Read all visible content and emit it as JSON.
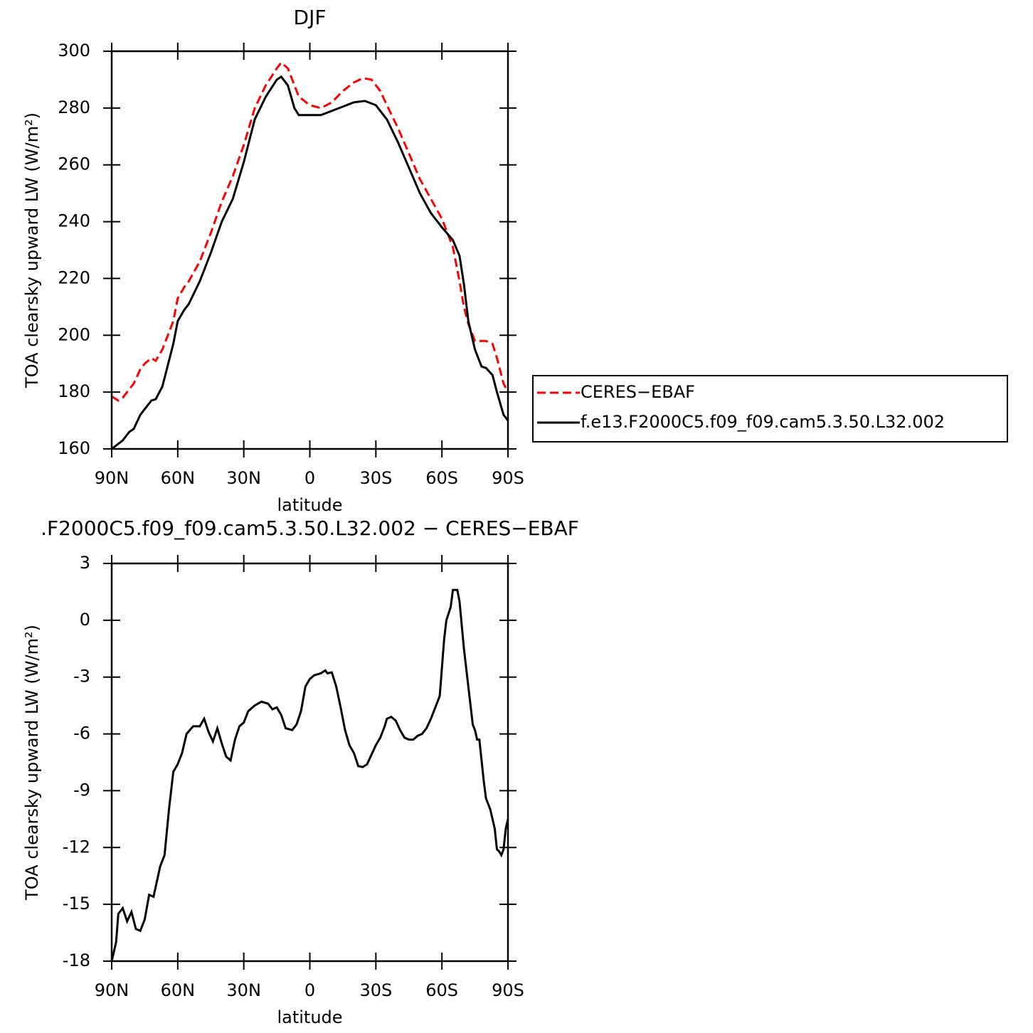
{
  "chart_data": [
    {
      "type": "line",
      "title": "DJF",
      "xlabel": "latitude",
      "ylabel": "TOA clearsky upward LW (W/m²)",
      "xlim": [
        90,
        -90
      ],
      "xticks": [
        {
          "value": 90,
          "label": "90N"
        },
        {
          "value": 60,
          "label": "60N"
        },
        {
          "value": 30,
          "label": "30N"
        },
        0,
        {
          "value": -30,
          "label": "30S"
        },
        {
          "value": -60,
          "label": "60S"
        },
        {
          "value": -90,
          "label": "90S"
        }
      ],
      "ylim": [
        160,
        300
      ],
      "yticks": [
        160,
        180,
        200,
        220,
        240,
        260,
        280,
        300
      ],
      "legend": "outside-right",
      "series": [
        {
          "name": "CERES−EBAF",
          "color": "#ff0000",
          "dashed": true,
          "x": [
            90,
            87,
            85,
            82,
            80,
            77,
            75,
            72,
            70,
            67,
            65,
            62,
            60,
            57,
            55,
            50,
            45,
            40,
            35,
            30,
            25,
            20,
            15,
            13,
            10,
            5,
            0,
            -5,
            -10,
            -15,
            -20,
            -24,
            -28,
            -32,
            -35,
            -40,
            -45,
            -50,
            -55,
            -60,
            -63,
            -65,
            -68,
            -70,
            -72,
            -75,
            -78,
            -80,
            -83,
            -85,
            -88,
            -90
          ],
          "values": [
            178.5,
            177,
            178,
            181,
            183,
            188,
            190,
            192,
            191,
            195,
            199,
            205,
            213,
            217,
            219,
            226,
            236,
            247,
            256,
            267,
            280,
            288,
            294,
            296,
            294,
            284,
            281,
            280,
            282,
            286,
            289,
            290.5,
            290,
            286,
            281,
            273,
            264,
            255,
            248,
            241,
            235,
            231,
            219,
            210,
            204,
            198,
            198,
            198,
            197,
            192,
            183,
            180
          ]
        },
        {
          "name": "f.e13.F2000C5.f09_f09.cam5.3.50.L32.002",
          "color": "#000000",
          "dashed": false,
          "x": [
            90,
            85,
            82,
            80,
            77,
            75,
            72,
            70,
            67,
            65,
            62,
            60,
            57,
            55,
            50,
            45,
            40,
            35,
            30,
            25,
            20,
            15,
            13,
            10,
            7,
            5,
            0,
            -5,
            -10,
            -15,
            -20,
            -25,
            -30,
            -35,
            -40,
            -45,
            -50,
            -55,
            -60,
            -65,
            -68,
            -70,
            -72,
            -75,
            -78,
            -80,
            -83,
            -85,
            -88,
            -90
          ],
          "values": [
            160,
            163,
            166,
            167,
            172,
            174,
            177,
            177.5,
            182,
            188,
            197,
            205,
            209,
            211,
            219,
            229,
            240,
            248,
            261,
            276,
            284,
            290,
            291,
            288,
            280,
            277.5,
            277.5,
            277.5,
            279,
            280.5,
            282,
            282.5,
            281,
            276,
            268,
            259,
            250,
            243,
            238,
            233.5,
            228,
            218,
            205,
            195,
            189,
            188.5,
            186,
            180,
            172,
            170
          ]
        }
      ]
    },
    {
      "type": "line",
      "title": ".F2000C5.f09_f09.cam5.3.50.L32.002 − CERES−EBAF",
      "xlabel": "latitude",
      "ylabel": "TOA clearsky upward LW (W/m²)",
      "xlim": [
        90,
        -90
      ],
      "xticks": [
        {
          "value": 90,
          "label": "90N"
        },
        {
          "value": 60,
          "label": "60N"
        },
        {
          "value": 30,
          "label": "30N"
        },
        0,
        {
          "value": -30,
          "label": "30S"
        },
        {
          "value": -60,
          "label": "60S"
        },
        {
          "value": -90,
          "label": "90S"
        }
      ],
      "ylim": [
        -18,
        3
      ],
      "yticks": [
        -18,
        -15,
        -12,
        -9,
        -6,
        -3,
        0,
        3
      ],
      "series": [
        {
          "color": "#000000",
          "dashed": false,
          "x": [
            90,
            88,
            87,
            85,
            83,
            81,
            79,
            77,
            75,
            73,
            71,
            68,
            66,
            64,
            62,
            60,
            58,
            56,
            53,
            50,
            48,
            46,
            44,
            42,
            40,
            38,
            36,
            34,
            32,
            30,
            28,
            25,
            22,
            19,
            17,
            15,
            13,
            11,
            8,
            6,
            4,
            2,
            0,
            -2,
            -5,
            -7,
            -8,
            -10,
            -12,
            -14,
            -16,
            -18,
            -20,
            -22,
            -24,
            -26,
            -28,
            -30,
            -32,
            -34,
            -35,
            -37,
            -39,
            -41,
            -43,
            -45,
            -47,
            -49,
            -51,
            -53,
            -55,
            -57,
            -59,
            -61,
            -62,
            -64,
            -65,
            -67,
            -68,
            -70,
            -72,
            -74,
            -75,
            -76,
            -77,
            -79,
            -80,
            -82,
            -84,
            -85,
            -86,
            -87,
            -88,
            -89,
            -90
          ],
          "values": [
            -18,
            -17,
            -15.5,
            -15.2,
            -15.9,
            -15.4,
            -16.3,
            -16.4,
            -15.8,
            -14.5,
            -14.6,
            -13,
            -12.4,
            -10,
            -8,
            -7.6,
            -7,
            -6,
            -5.6,
            -5.6,
            -5.2,
            -5.9,
            -6.4,
            -5.7,
            -6.5,
            -7.2,
            -7.4,
            -6.3,
            -5.6,
            -5.4,
            -4.8,
            -4.5,
            -4.3,
            -4.4,
            -4.7,
            -4.6,
            -5,
            -5.7,
            -5.8,
            -5.5,
            -4.8,
            -3.5,
            -3.1,
            -2.9,
            -2.8,
            -2.65,
            -2.8,
            -2.75,
            -3.5,
            -4.6,
            -5.8,
            -6.6,
            -7,
            -7.7,
            -7.75,
            -7.6,
            -7.1,
            -6.6,
            -6.2,
            -5.6,
            -5.2,
            -5.1,
            -5.3,
            -5.8,
            -6.2,
            -6.3,
            -6.3,
            -6.1,
            -6,
            -5.7,
            -5.2,
            -4.6,
            -4,
            -1,
            0,
            0.7,
            1.6,
            1.6,
            1,
            -1.5,
            -3.5,
            -5.5,
            -5.8,
            -6.3,
            -6.3,
            -8.5,
            -9.4,
            -10,
            -11,
            -12.1,
            -12.2,
            -12.4,
            -12.1,
            -11,
            -10.5
          ]
        }
      ]
    }
  ]
}
